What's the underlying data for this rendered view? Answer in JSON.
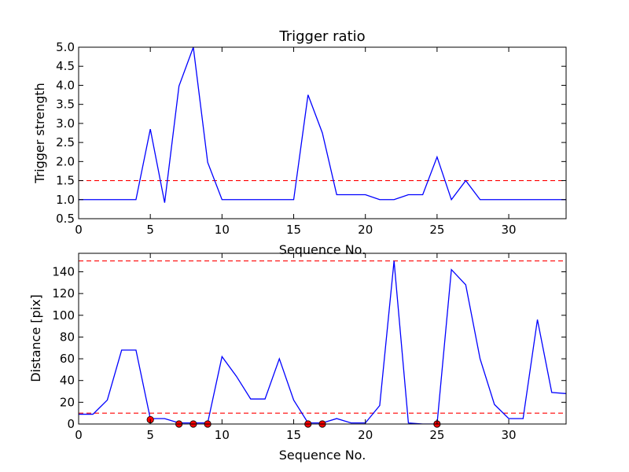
{
  "chart_data": [
    {
      "type": "line",
      "title": "Trigger ratio",
      "xlabel": "Sequence No.",
      "ylabel": "Trigger strength",
      "xlim": [
        0,
        34
      ],
      "ylim": [
        0.5,
        5.0
      ],
      "xticks": [
        0,
        5,
        10,
        15,
        20,
        25,
        30
      ],
      "yticks": [
        0.5,
        1.0,
        1.5,
        2.0,
        2.5,
        3.0,
        3.5,
        4.0,
        4.5,
        5.0
      ],
      "ytick_decimals": 1,
      "grid": false,
      "series": [
        {
          "color": "#0000ff",
          "style": "solid",
          "x": [
            0,
            1,
            2,
            3,
            4,
            5,
            6,
            7,
            8,
            9,
            10,
            11,
            12,
            13,
            14,
            15,
            16,
            17,
            18,
            19,
            20,
            21,
            22,
            23,
            24,
            25,
            26,
            27,
            28,
            29,
            30,
            31,
            32,
            33,
            34
          ],
          "y": [
            1.0,
            1.0,
            1.0,
            1.0,
            1.0,
            2.85,
            0.92,
            3.98,
            5.0,
            1.98,
            1.0,
            1.0,
            1.0,
            1.0,
            1.0,
            1.0,
            3.75,
            2.75,
            1.13,
            1.13,
            1.13,
            1.0,
            1.0,
            1.13,
            1.13,
            2.12,
            1.0,
            1.5,
            1.0,
            1.0,
            1.0,
            1.0,
            1.0,
            1.0,
            1.0
          ]
        }
      ],
      "hlines": [
        {
          "y": 1.5,
          "color": "#ff0000",
          "style": "dashed"
        }
      ],
      "markers": []
    },
    {
      "type": "line",
      "title": "",
      "xlabel": "Sequence No.",
      "ylabel": "Distance [pix]",
      "xlim": [
        0,
        34
      ],
      "ylim": [
        0,
        157
      ],
      "xticks": [
        0,
        5,
        10,
        15,
        20,
        25,
        30
      ],
      "yticks": [
        0,
        20,
        40,
        60,
        80,
        100,
        120,
        140
      ],
      "ytick_decimals": 0,
      "grid": false,
      "series": [
        {
          "color": "#0000ff",
          "style": "solid",
          "x": [
            0,
            1,
            2,
            3,
            4,
            5,
            6,
            7,
            8,
            9,
            10,
            11,
            12,
            13,
            14,
            15,
            16,
            17,
            18,
            19,
            20,
            21,
            22,
            23,
            24,
            25,
            26,
            27,
            28,
            29,
            30,
            31,
            32,
            33,
            34
          ],
          "y": [
            9,
            9,
            22,
            68,
            68,
            5,
            5,
            1,
            1,
            1,
            62,
            44,
            23,
            23,
            60,
            22,
            1,
            1,
            5,
            1,
            1,
            17,
            150,
            1,
            0,
            0,
            142,
            128,
            60,
            18,
            5,
            5,
            96,
            29,
            28
          ]
        }
      ],
      "hlines": [
        {
          "y": 10,
          "color": "#ff0000",
          "style": "dashed"
        },
        {
          "y": 150,
          "color": "#ff0000",
          "style": "dashed"
        }
      ],
      "markers": [
        {
          "x": 5,
          "y": 4,
          "color": "#ff0000"
        },
        {
          "x": 7,
          "y": 0,
          "color": "#ff0000"
        },
        {
          "x": 8,
          "y": 0,
          "color": "#ff0000"
        },
        {
          "x": 9,
          "y": 0,
          "color": "#ff0000"
        },
        {
          "x": 16,
          "y": 0,
          "color": "#ff0000"
        },
        {
          "x": 17,
          "y": 0,
          "color": "#ff0000"
        },
        {
          "x": 25,
          "y": 0,
          "color": "#ff0000"
        }
      ]
    }
  ]
}
